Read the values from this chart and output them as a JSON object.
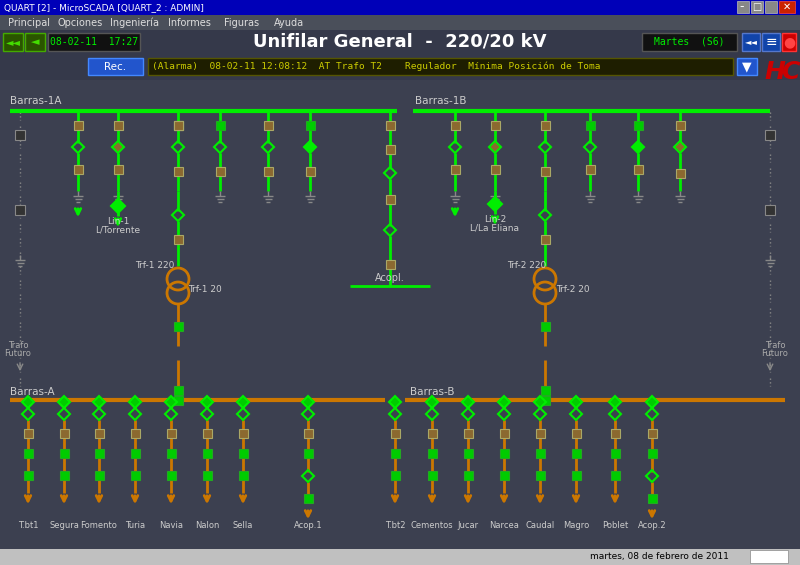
{
  "title_bar": "QUART [2] - MicroSCADA [QUART_2 : ADMIN]",
  "menu_items": [
    "Principal",
    "Opciones",
    "Ingeniería",
    "Informes",
    "Figuras",
    "Ayuda"
  ],
  "datetime": "08-02-11  17:27",
  "main_title": "Unifilar General  -  220/20 kV",
  "day_info": "Martes  (S6)",
  "alarm_text": "(Alarma)  08-02-11 12:08:12  AT Trafo T2    Regulador  Mínima Posición de Toma",
  "rec_label": "Rec.",
  "barras_labels": [
    "Barras-1A",
    "Barras-1B",
    "Barras-A",
    "Barras-B"
  ],
  "bottom_labels": [
    "T.bt1",
    "Segura",
    "Fomento",
    "Turia",
    "Navia",
    "Nalon",
    "Sella",
    "Acop.1",
    "T.bt2",
    "Cementos",
    "Jucar",
    "Narcea",
    "Caudal",
    "Magro",
    "Poblet",
    "Acop.2"
  ],
  "bg_color": "#3c4050",
  "titlebar_color": "#0000b8",
  "menubar_color": "#4a4f5a",
  "alarm_bg": "#1e1e00",
  "green_line": "#00ee00",
  "orange_line": "#cc7700",
  "green_sq": "#00cc00",
  "dark_green_sq": "#006600",
  "brown_sq": "#8b6930",
  "gray_sq": "#555555",
  "white_text": "#ffffff",
  "gray_text": "#aaaaaa",
  "yellow_text": "#cccc00",
  "red_color": "#cc0000",
  "blue_btn": "#1144aa"
}
